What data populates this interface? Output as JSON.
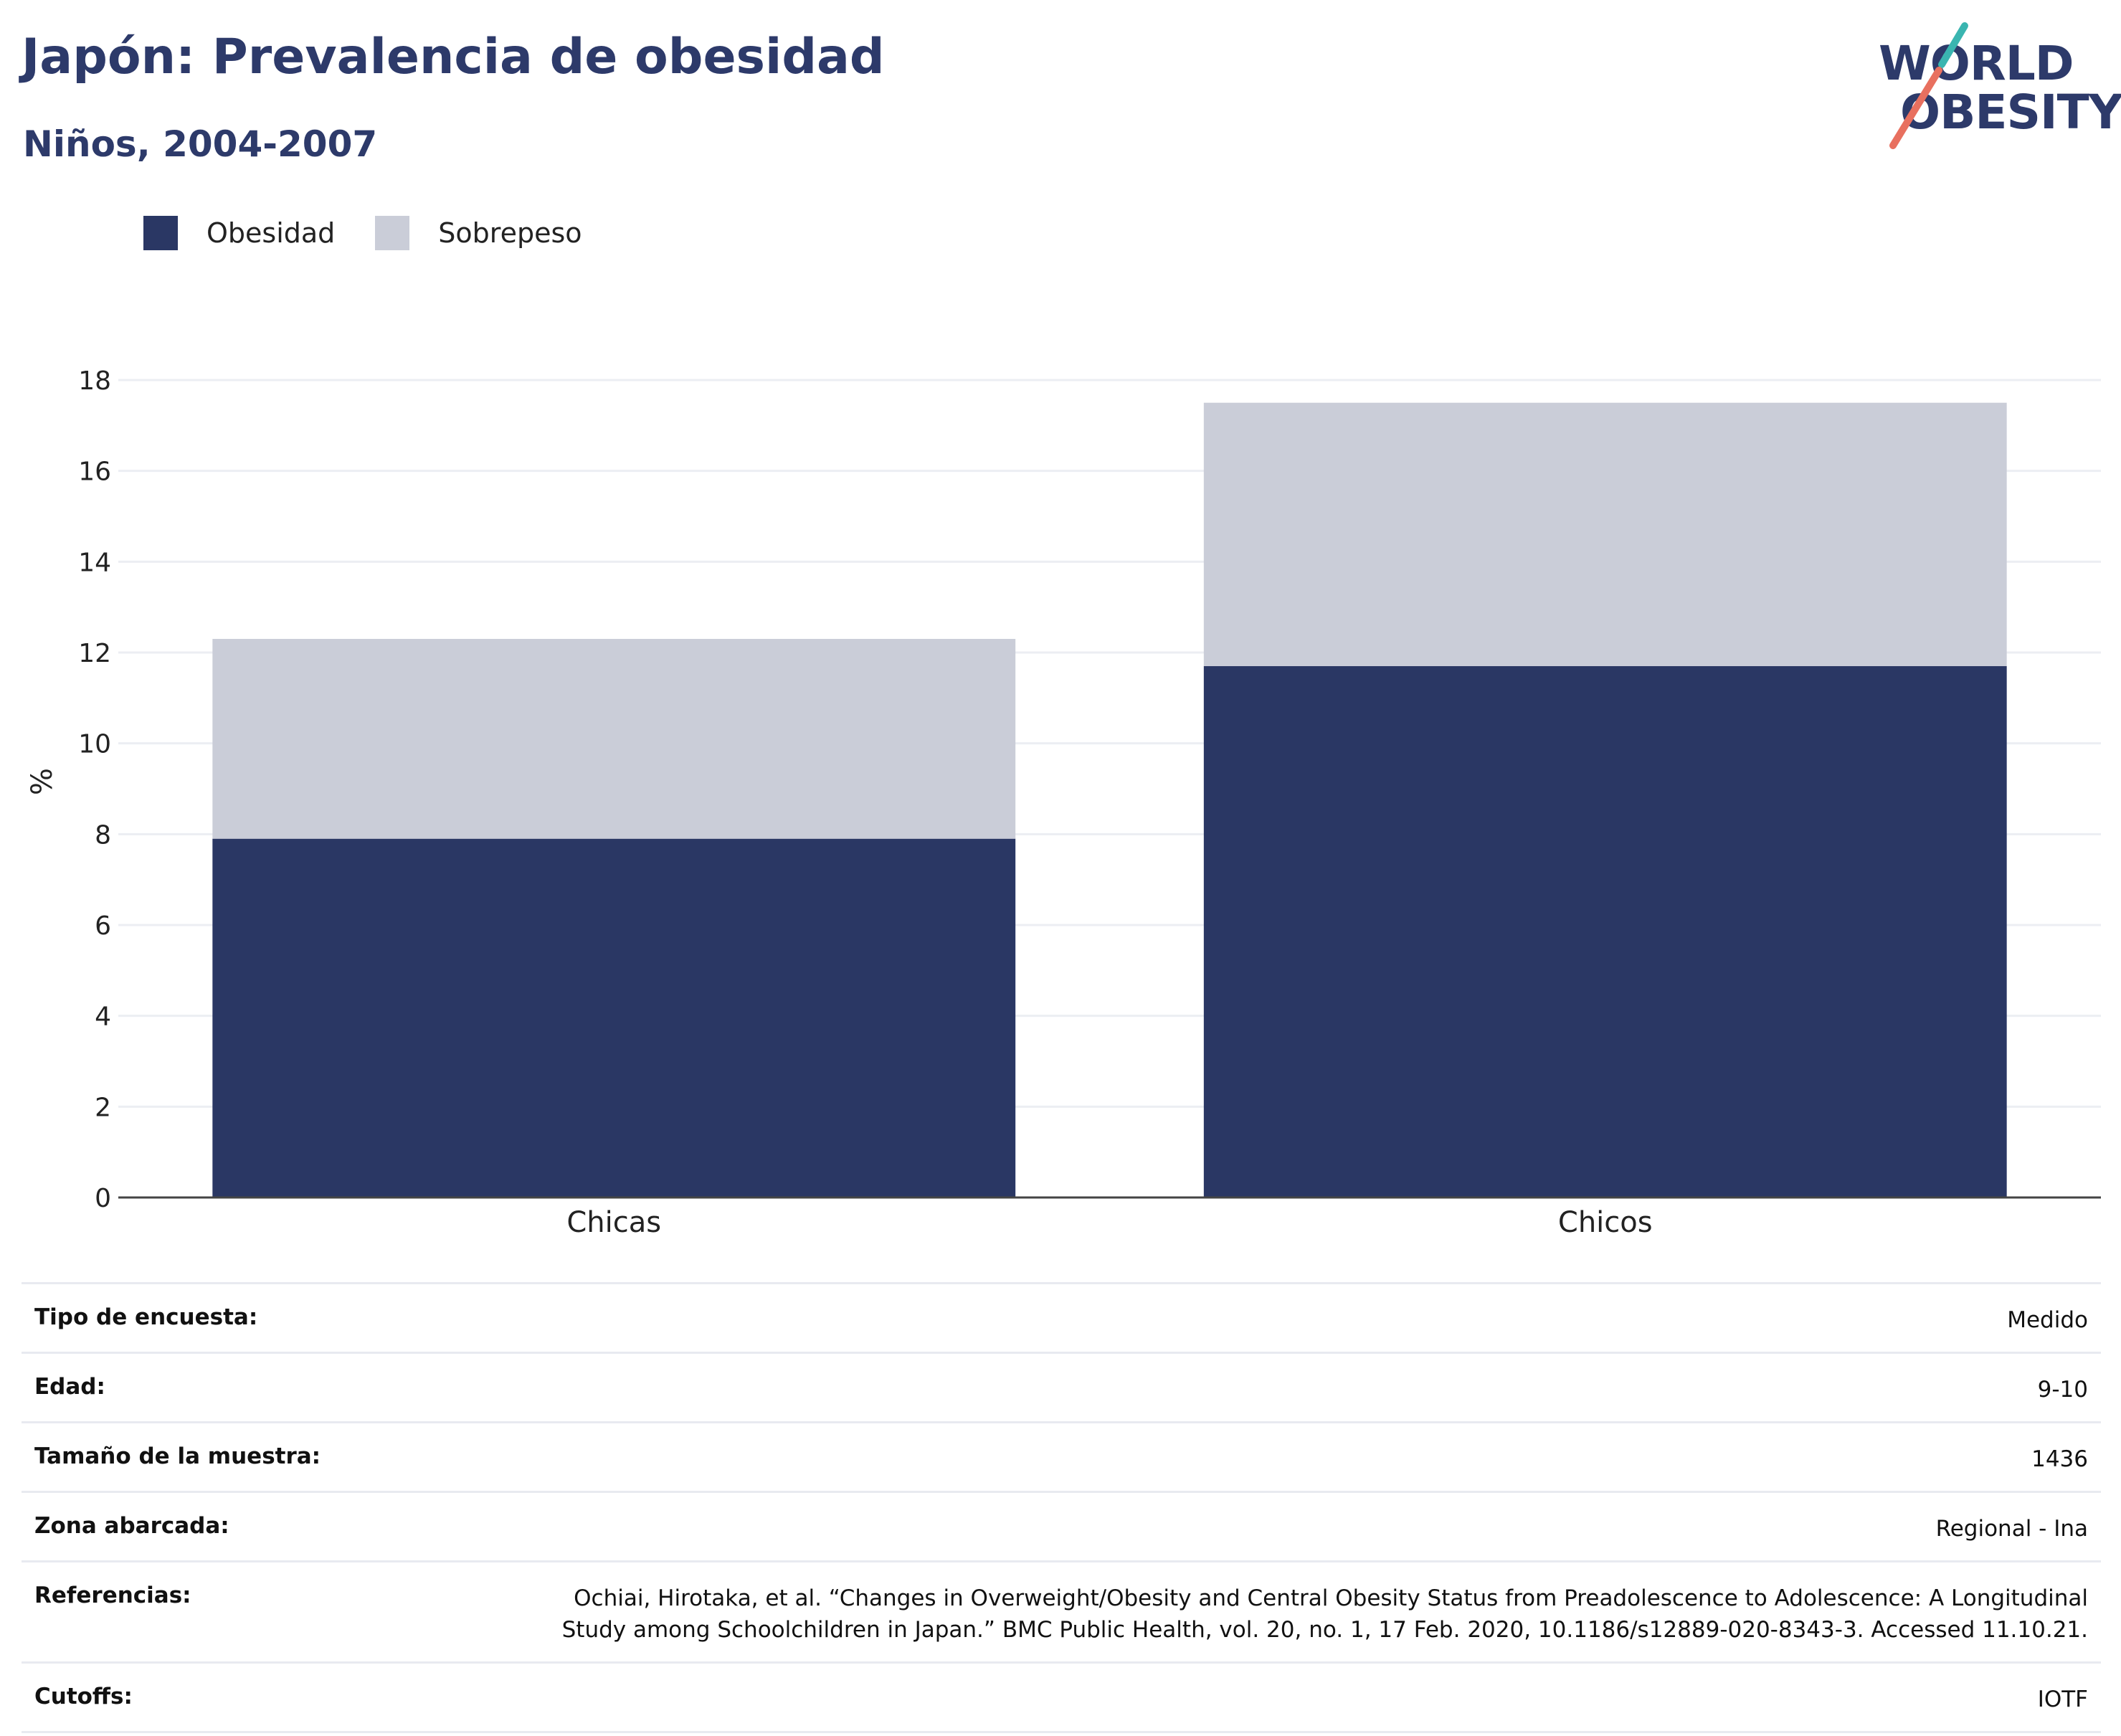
{
  "header": {
    "title": "Japón: Prevalencia de obesidad",
    "subtitle": "Niños, 2004-2007"
  },
  "logo": {
    "line1": "WORLD",
    "line2": "OBESITY",
    "colors": {
      "text": "#2d3a6a",
      "accent_top": "#3ab5b0",
      "accent_bottom": "#e8705f"
    }
  },
  "legend": [
    {
      "label": "Obesidad",
      "color": "#2a3764"
    },
    {
      "label": "Sobrepeso",
      "color": "#cacdd8"
    }
  ],
  "chart_data": {
    "type": "bar",
    "stacked": true,
    "categories": [
      "Chicas",
      "Chicos"
    ],
    "series": [
      {
        "name": "Obesidad",
        "values": [
          7.9,
          11.7
        ],
        "color": "#2a3764"
      },
      {
        "name": "Sobrepeso",
        "values": [
          4.4,
          5.8
        ],
        "color": "#cacdd8"
      }
    ],
    "ylabel": "%",
    "xlabel": "",
    "ylim": [
      0,
      18
    ],
    "yticks": [
      0,
      2,
      4,
      6,
      8,
      10,
      12,
      14,
      16,
      18
    ],
    "grid": true,
    "legend_position": "top-left"
  },
  "info": [
    {
      "key": "Tipo de encuesta:",
      "value": "Medido"
    },
    {
      "key": "Edad:",
      "value": "9-10"
    },
    {
      "key": "Tamaño de la muestra:",
      "value": "1436"
    },
    {
      "key": "Zona abarcada:",
      "value": "Regional - Ina"
    },
    {
      "key": "Referencias:",
      "value": "Ochiai, Hirotaka, et al. “Changes in Overweight/Obesity and Central Obesity Status from Preadolescence to Adolescence: A Longitudinal Study among Schoolchildren in Japan.” BMC Public Health, vol. 20, no. 1, 17 Feb. 2020, 10.1186/s12889-020-8343-3. Accessed 11.10.21."
    },
    {
      "key": "Cutoffs:",
      "value": "IOTF"
    }
  ]
}
